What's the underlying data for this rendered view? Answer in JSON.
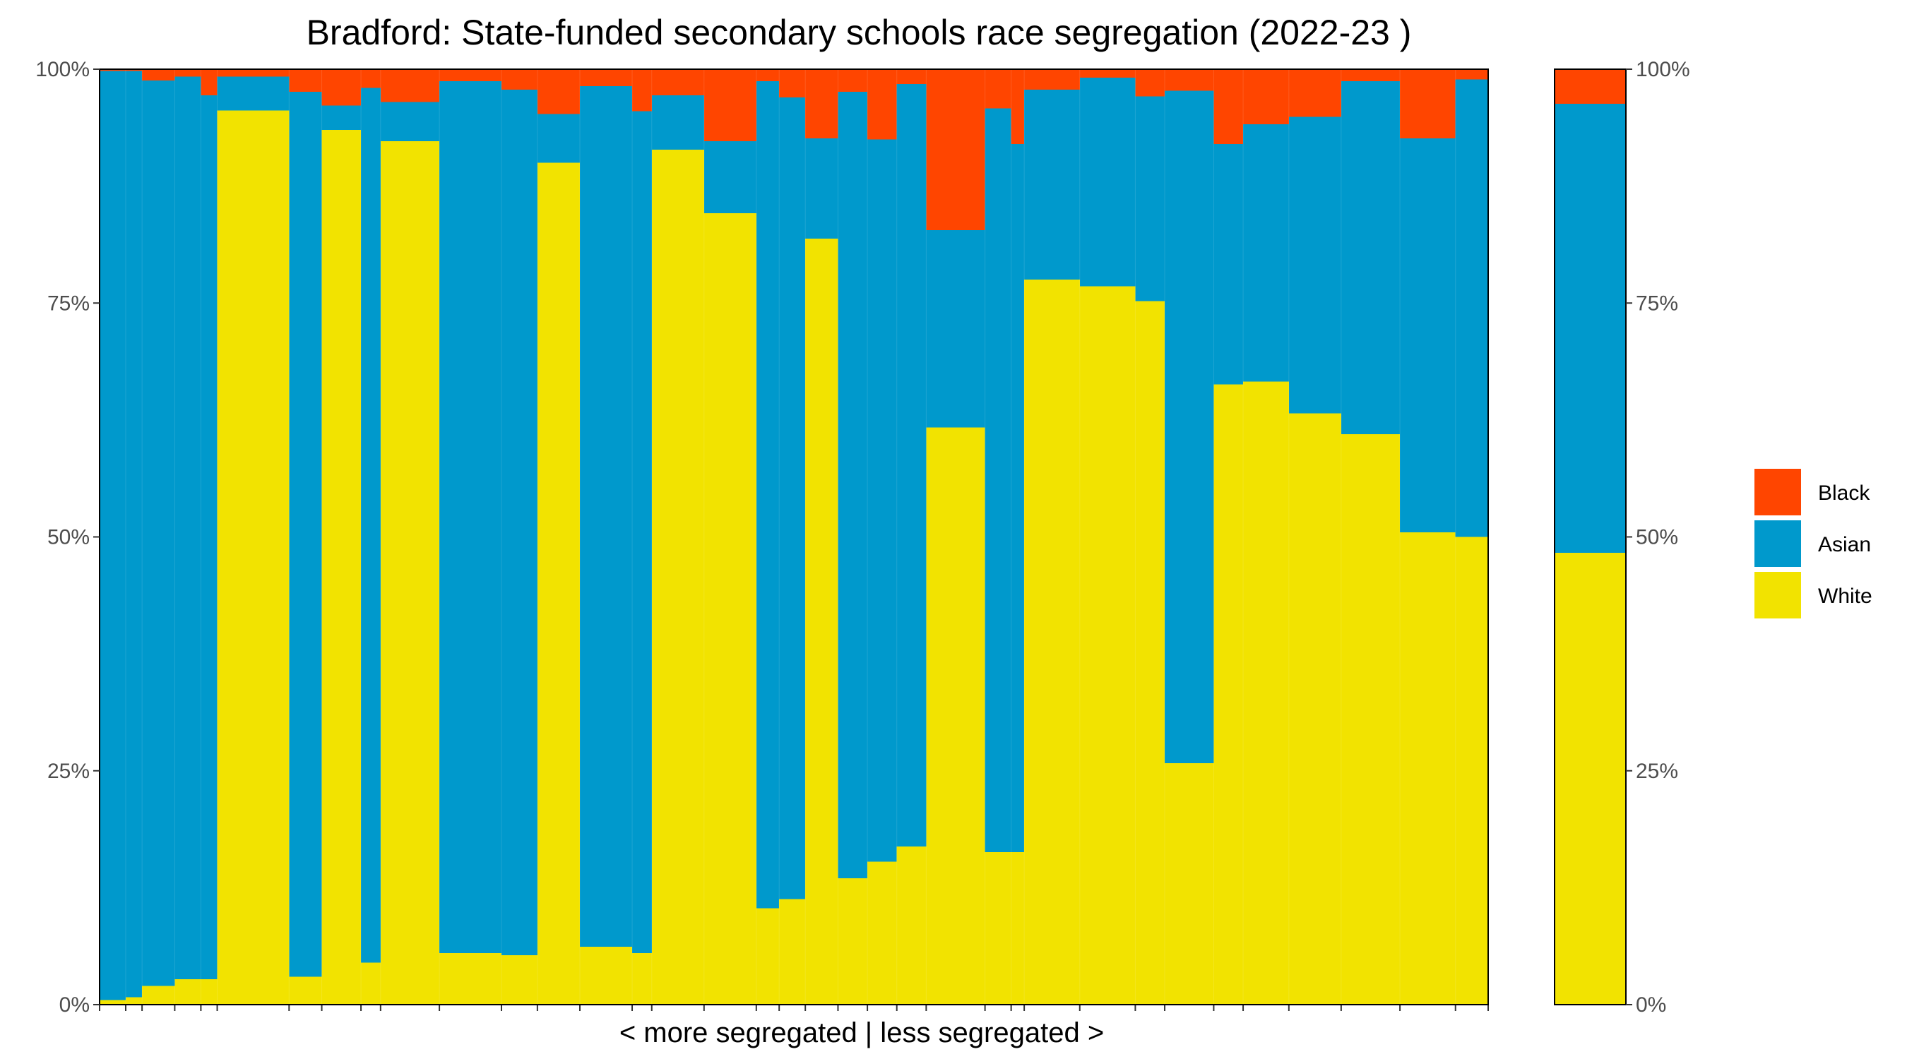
{
  "chart_data": {
    "type": "bar",
    "stacked": "percent",
    "variable_width": true,
    "title": "Bradford: State-funded secondary schools race segregation (2022-23 )",
    "xlabel": "< more segregated | less segregated >",
    "ylabel": "",
    "ylim": [
      0,
      1
    ],
    "y_ticks": [
      "0%",
      "25%",
      "50%",
      "75%",
      "100%"
    ],
    "y_ticks_right": [
      "0%",
      "25%",
      "50%",
      "75%",
      "100%"
    ],
    "legend_position": "right",
    "grid": false,
    "series": [
      {
        "name": "Black",
        "color": "#FF4500"
      },
      {
        "name": "Asian",
        "color": "#0099CC"
      },
      {
        "name": "White",
        "color": "#F2E300"
      }
    ],
    "schools": [
      {
        "w": 0.4,
        "white": 0.005,
        "asian": 0.993,
        "black": 0.002
      },
      {
        "w": 0.25,
        "white": 0.008,
        "asian": 0.99,
        "black": 0.002
      },
      {
        "w": 0.5,
        "white": 0.02,
        "asian": 0.968,
        "black": 0.012
      },
      {
        "w": 0.4,
        "white": 0.027,
        "asian": 0.965,
        "black": 0.008
      },
      {
        "w": 0.25,
        "white": 0.027,
        "asian": 0.945,
        "black": 0.028
      },
      {
        "w": 1.1,
        "white": 0.956,
        "asian": 0.036,
        "black": 0.008
      },
      {
        "w": 0.5,
        "white": 0.03,
        "asian": 0.946,
        "black": 0.024
      },
      {
        "w": 0.6,
        "white": 0.935,
        "asian": 0.026,
        "black": 0.039
      },
      {
        "w": 0.3,
        "white": 0.045,
        "asian": 0.935,
        "black": 0.02
      },
      {
        "w": 0.9,
        "white": 0.923,
        "asian": 0.042,
        "black": 0.035
      },
      {
        "w": 0.95,
        "white": 0.055,
        "asian": 0.932,
        "black": 0.013
      },
      {
        "w": 0.55,
        "white": 0.053,
        "asian": 0.925,
        "black": 0.022
      },
      {
        "w": 0.65,
        "white": 0.9,
        "asian": 0.052,
        "black": 0.048
      },
      {
        "w": 0.8,
        "white": 0.062,
        "asian": 0.92,
        "black": 0.018
      },
      {
        "w": 0.3,
        "white": 0.055,
        "asian": 0.9,
        "black": 0.045
      },
      {
        "w": 0.8,
        "white": 0.914,
        "asian": 0.058,
        "black": 0.028
      },
      {
        "w": 0.8,
        "white": 0.846,
        "asian": 0.077,
        "black": 0.077
      },
      {
        "w": 0.35,
        "white": 0.103,
        "asian": 0.884,
        "black": 0.013
      },
      {
        "w": 0.4,
        "white": 0.113,
        "asian": 0.857,
        "black": 0.03
      },
      {
        "w": 0.5,
        "white": 0.819,
        "asian": 0.107,
        "black": 0.074
      },
      {
        "w": 0.45,
        "white": 0.135,
        "asian": 0.841,
        "black": 0.024
      },
      {
        "w": 0.45,
        "white": 0.153,
        "asian": 0.772,
        "black": 0.075
      },
      {
        "w": 0.45,
        "white": 0.169,
        "asian": 0.815,
        "black": 0.016
      },
      {
        "w": 0.9,
        "white": 0.617,
        "asian": 0.211,
        "black": 0.172
      },
      {
        "w": 0.4,
        "white": 0.163,
        "asian": 0.795,
        "black": 0.042
      },
      {
        "w": 0.2,
        "white": 0.163,
        "asian": 0.757,
        "black": 0.08
      },
      {
        "w": 0.85,
        "white": 0.775,
        "asian": 0.203,
        "black": 0.022
      },
      {
        "w": 0.85,
        "white": 0.768,
        "asian": 0.223,
        "black": 0.009
      },
      {
        "w": 0.45,
        "white": 0.752,
        "asian": 0.219,
        "black": 0.029
      },
      {
        "w": 0.75,
        "white": 0.258,
        "asian": 0.719,
        "black": 0.023
      },
      {
        "w": 0.45,
        "white": 0.663,
        "asian": 0.257,
        "black": 0.08
      },
      {
        "w": 0.7,
        "white": 0.666,
        "asian": 0.275,
        "black": 0.059
      },
      {
        "w": 0.8,
        "white": 0.632,
        "asian": 0.317,
        "black": 0.051
      },
      {
        "w": 0.9,
        "white": 0.61,
        "asian": 0.377,
        "black": 0.013
      },
      {
        "w": 0.85,
        "white": 0.505,
        "asian": 0.421,
        "black": 0.074
      },
      {
        "w": 0.5,
        "white": 0.5,
        "asian": 0.489,
        "black": 0.011
      }
    ],
    "overall": {
      "white": 0.483,
      "asian": 0.48,
      "black": 0.037
    }
  }
}
